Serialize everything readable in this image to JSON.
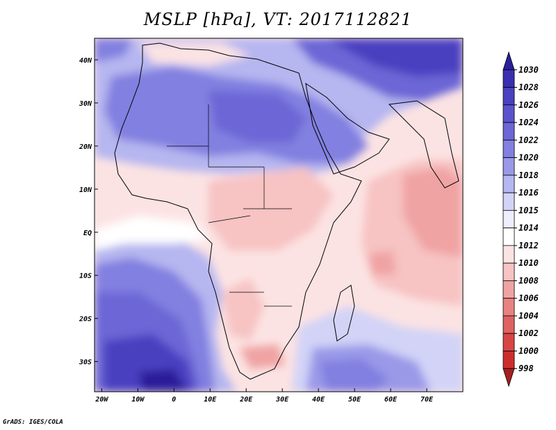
{
  "title": "MSLP [hPa], VT: 2017112821",
  "credit": "GrADS: IGES/COLA",
  "map": {
    "lon_range": [
      -22,
      80
    ],
    "lat_range": [
      -37,
      45
    ],
    "lon_ticks": [
      {
        "lon": -20,
        "label": "20W"
      },
      {
        "lon": -10,
        "label": "10W"
      },
      {
        "lon": 0,
        "label": "0"
      },
      {
        "lon": 10,
        "label": "10E"
      },
      {
        "lon": 20,
        "label": "20E"
      },
      {
        "lon": 30,
        "label": "30E"
      },
      {
        "lon": 40,
        "label": "40E"
      },
      {
        "lon": 50,
        "label": "50E"
      },
      {
        "lon": 60,
        "label": "60E"
      },
      {
        "lon": 70,
        "label": "70E"
      }
    ],
    "lat_ticks": [
      {
        "lat": 40,
        "label": "40N"
      },
      {
        "lat": 30,
        "label": "30N"
      },
      {
        "lat": 20,
        "label": "20N"
      },
      {
        "lat": 10,
        "label": "10N"
      },
      {
        "lat": 0,
        "label": "EQ"
      },
      {
        "lat": -10,
        "label": "10S"
      },
      {
        "lat": -20,
        "label": "20S"
      },
      {
        "lat": -30,
        "label": "30S"
      }
    ]
  },
  "colorbar": {
    "levels": [
      "1030",
      "1028",
      "1026",
      "1024",
      "1022",
      "1020",
      "1018",
      "1016",
      "1015",
      "1014",
      "1012",
      "1010",
      "1008",
      "1006",
      "1004",
      "1002",
      "1000",
      "998"
    ],
    "colors": [
      "#2c1f9a",
      "#3a2fb0",
      "#4a40c0",
      "#5a52cc",
      "#6c66d6",
      "#8280e0",
      "#9a99e8",
      "#b6b6f0",
      "#d2d3f7",
      "#eeeeff",
      "#ffffff",
      "#fce3e3",
      "#f7c3c3",
      "#f0a3a3",
      "#e88282",
      "#e06262",
      "#d84545",
      "#cc2e2e",
      "#a81e1e"
    ]
  },
  "pressure_regions": [
    {
      "name": "south-atlantic-high",
      "color": "#6c66d6"
    },
    {
      "name": "south-atlantic-core",
      "color": "#4a40c0"
    },
    {
      "name": "south-atlantic-center",
      "color": "#2c1f9a"
    },
    {
      "name": "saharan-high",
      "color": "#8280e0"
    },
    {
      "name": "central-asia-high",
      "color": "#5a52cc"
    },
    {
      "name": "indian-ocean-low",
      "color": "#f0a3a3"
    },
    {
      "name": "kalahari-low",
      "color": "#f0a3a3"
    }
  ]
}
